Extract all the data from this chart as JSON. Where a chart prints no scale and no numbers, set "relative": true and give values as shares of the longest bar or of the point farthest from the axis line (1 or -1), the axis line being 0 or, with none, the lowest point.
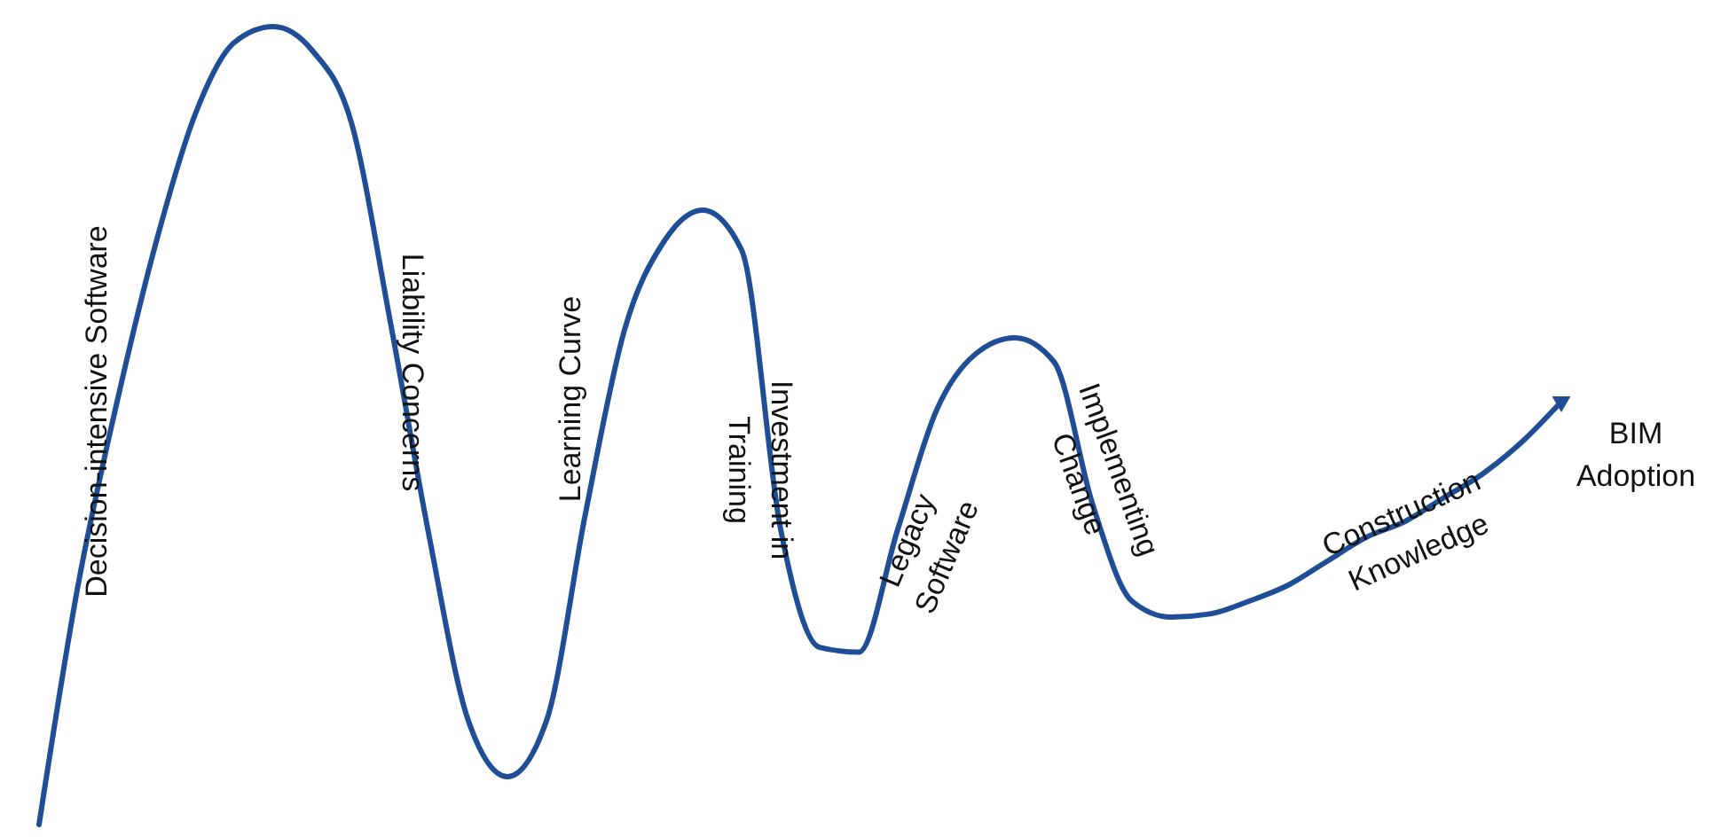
{
  "chart_data": {
    "type": "line",
    "relative": true,
    "categories": [
      null,
      null,
      null,
      null,
      null,
      null,
      null,
      null,
      null,
      null,
      null,
      null,
      null,
      null,
      null,
      null,
      null,
      null,
      null,
      null,
      null,
      null,
      null,
      null,
      null,
      null,
      null,
      null,
      null,
      null,
      null,
      null,
      null,
      null,
      null,
      null,
      null,
      null,
      null,
      null
    ],
    "series": [
      {
        "color": "#1f4e96",
        "values": [
          0,
          0.3,
          0.53,
          0.73,
          0.89,
          0.98,
          1,
          0.97,
          0.88,
          0.63,
          0.36,
          0.13,
          0.06,
          0.13,
          0.39,
          0.62,
          0.73,
          0.77,
          0.72,
          0.37,
          0.222,
          0.216,
          0.37,
          0.52,
          0.59,
          0.61,
          0.58,
          0.4,
          0.28,
          0.26,
          0.264,
          0.28,
          0.3,
          0.33,
          0.36,
          0.38,
          0.41,
          0.44,
          0.48,
          0.53
        ]
      }
    ],
    "annotations": [
      "Decision-intensive Software",
      "Liability Concerns",
      "Learning Curve",
      "Investment in\nTraining",
      "Legacy\nSoftware",
      "Implementing\nChange",
      "Construction\nKnowledge",
      "BIM\nAdoption"
    ],
    "line_style": "solid"
  }
}
